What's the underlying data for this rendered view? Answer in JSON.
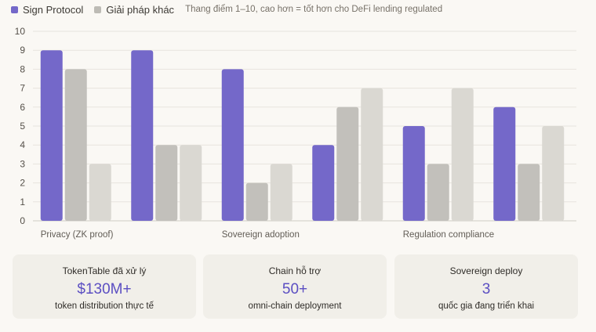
{
  "legend": {
    "items": [
      {
        "label": "Sign Protocol",
        "color": "#7468c9"
      },
      {
        "label": "Giải pháp khác",
        "color": "#bdbbb5"
      }
    ],
    "note": "Thang điểm 1–10, cao hơn = tốt hơn cho DeFi lending regulated"
  },
  "chart_data": {
    "type": "bar",
    "categories": [
      "Privacy (ZK proof)",
      "",
      "Sovereign adoption",
      "",
      "Regulation compliance",
      ""
    ],
    "series": [
      {
        "name": "Sign Protocol",
        "color": "#7468c9",
        "values": [
          9,
          9,
          8,
          4,
          5,
          6
        ]
      },
      {
        "color": "#c2c0bb",
        "values": [
          8,
          4,
          2,
          6,
          3,
          3
        ]
      },
      {
        "color": "#dad8d2",
        "values": [
          3,
          4,
          3,
          7,
          7,
          5
        ]
      }
    ],
    "ylim": [
      0,
      10
    ],
    "yticks": [
      0,
      1,
      2,
      3,
      4,
      5,
      6,
      7,
      8,
      9,
      10
    ],
    "grid": true,
    "legend_position": "top-left"
  },
  "stats": [
    {
      "label": "TokenTable đã xử lý",
      "value": "$130M+",
      "sub": "token distribution thực tế"
    },
    {
      "label": "Chain hỗ trợ",
      "value": "50+",
      "sub": "omni-chain deployment"
    },
    {
      "label": "Sovereign deploy",
      "value": "3",
      "sub": "quốc gia đang triển khai"
    }
  ]
}
